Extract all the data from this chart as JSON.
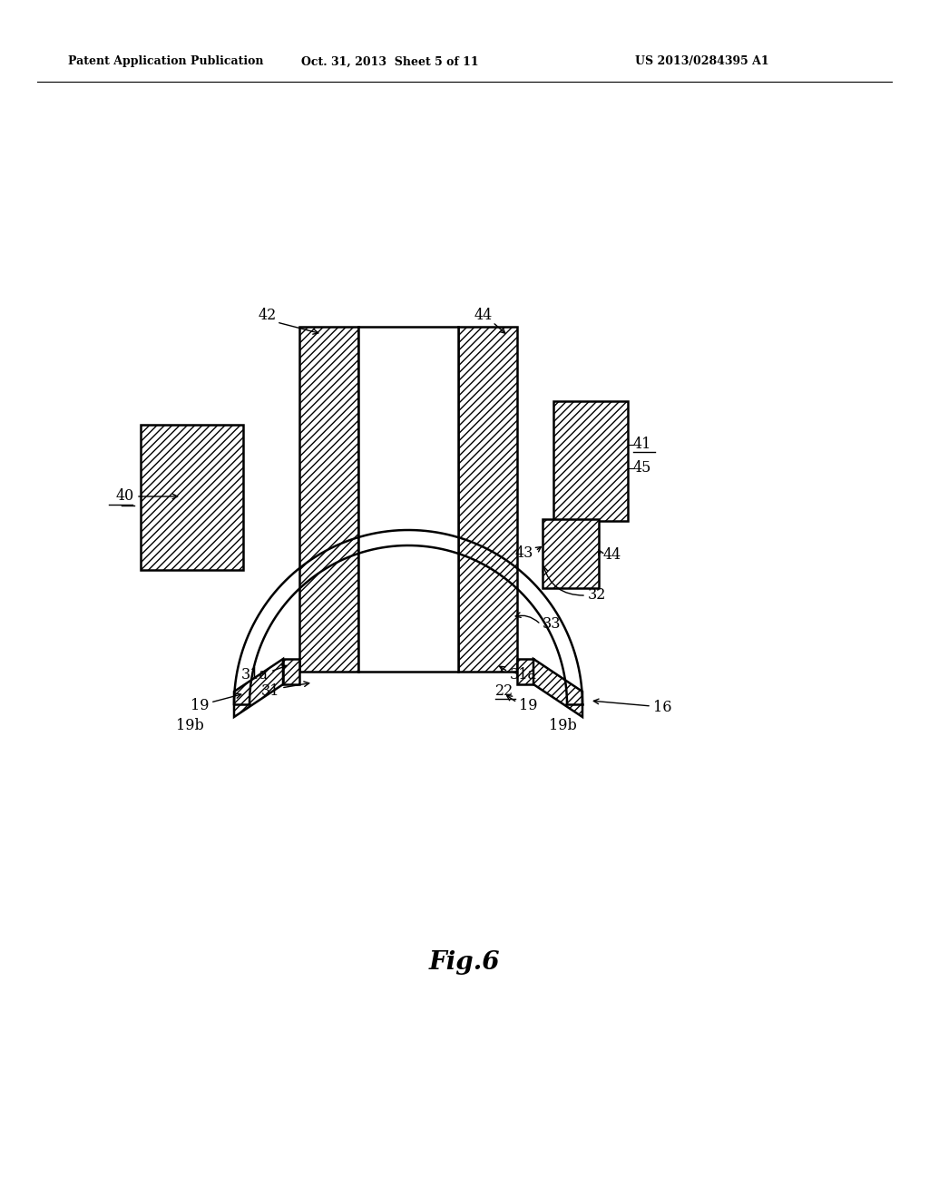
{
  "bg_color": "#ffffff",
  "line_color": "#000000",
  "header_left": "Patent Application Publication",
  "header_center": "Oct. 31, 2013  Sheet 5 of 11",
  "header_right": "US 2013/0284395 A1",
  "fig_label": "Fig.6",
  "page_width": 1.0,
  "page_height": 1.0
}
